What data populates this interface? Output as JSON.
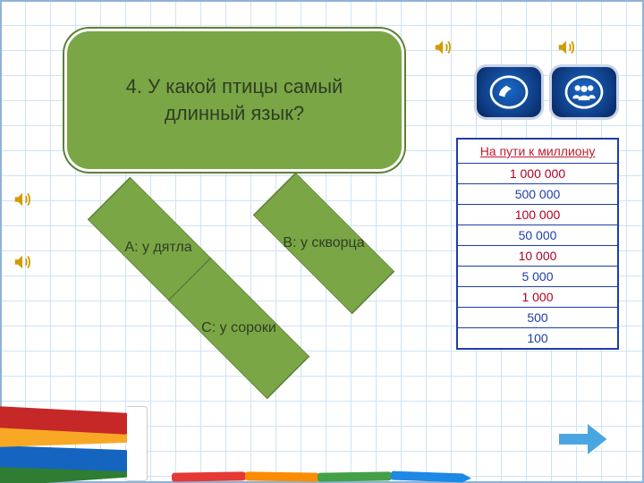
{
  "colors": {
    "green": "#7aa646",
    "green_border": "#5d7e38",
    "grid": "#cfe3f5",
    "table_border": "#1d3ea8",
    "red": "#c11a2b",
    "milestone": "#b00020",
    "lifeline_bg_start": "#1968c7",
    "lifeline_bg_end": "#06245a",
    "speaker": "#d39a00",
    "next_arrow": "#4aa6e0"
  },
  "question": {
    "text": "4. У какой птицы самый длинный язык?",
    "fontsize": 22
  },
  "answers": {
    "a": {
      "label": "А: у дятла"
    },
    "b": {
      "label": "В: у скворца"
    },
    "c": {
      "label": "С: у сороки"
    }
  },
  "lifelines": {
    "phone": {
      "name": "phone-a-friend"
    },
    "audience": {
      "name": "ask-the-audience"
    }
  },
  "prize": {
    "header": "На пути к миллиону",
    "rows": [
      {
        "value": "1 000 000",
        "milestone": true
      },
      {
        "value": "500 000",
        "milestone": false
      },
      {
        "value": "100 000",
        "milestone": true
      },
      {
        "value": "50 000",
        "milestone": false
      },
      {
        "value": "10 000",
        "milestone": true
      },
      {
        "value": "5 000",
        "milestone": false
      },
      {
        "value": "1 000",
        "milestone": true
      },
      {
        "value": "500",
        "milestone": false
      },
      {
        "value": "100",
        "milestone": false
      }
    ]
  },
  "decor": {
    "book_colors": [
      "#c62828",
      "#f9a825",
      "#1565c0",
      "#2e7d32"
    ],
    "pencil_colors": [
      "#e53935",
      "#fb8c00",
      "#43a047",
      "#1e88e5"
    ]
  }
}
